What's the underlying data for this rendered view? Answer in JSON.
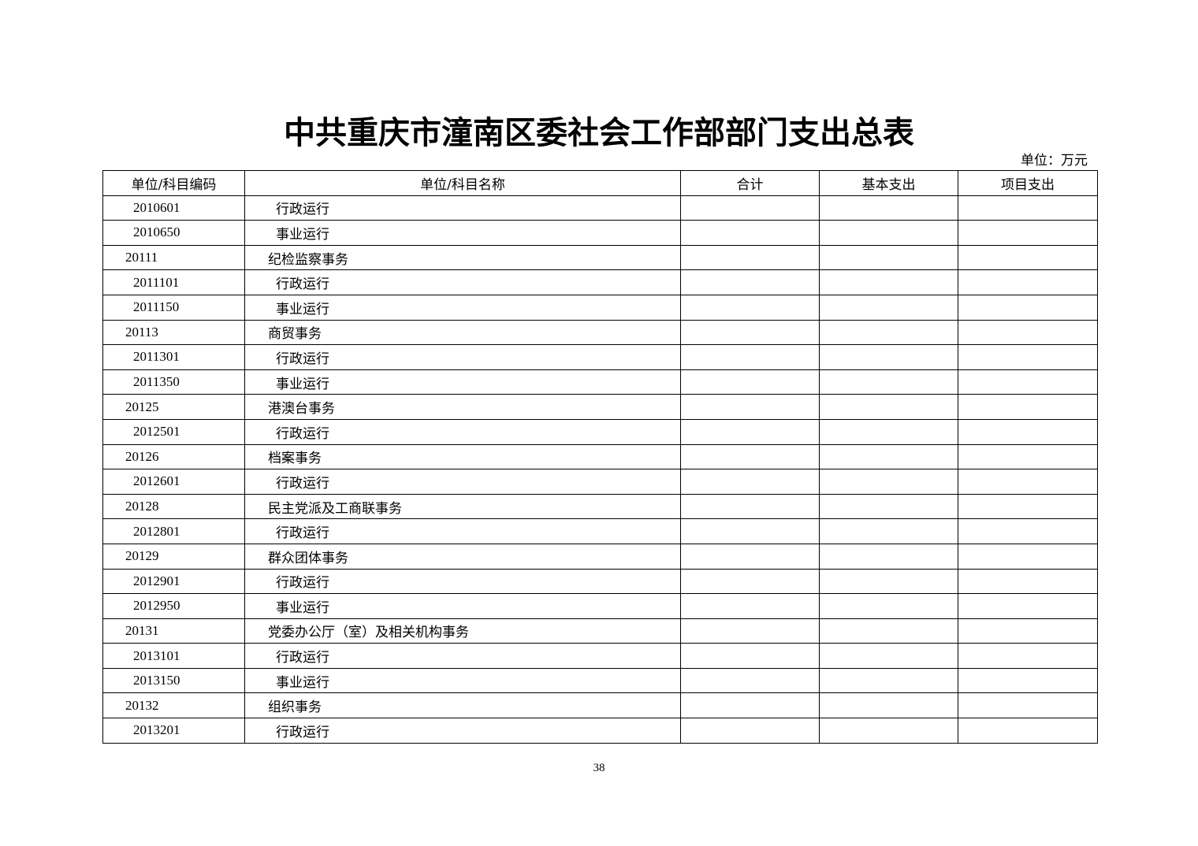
{
  "title": "中共重庆市潼南区委社会工作部部门支出总表",
  "unit": "单位：万元",
  "table": {
    "headers": [
      "单位/科目编码",
      "单位/科目名称",
      "合计",
      "基本支出",
      "项目支出"
    ],
    "rows": [
      {
        "code": "2010601",
        "name": "行政运行",
        "level": 2,
        "total": "",
        "basic": "",
        "project": ""
      },
      {
        "code": "2010650",
        "name": "事业运行",
        "level": 2,
        "total": "",
        "basic": "",
        "project": ""
      },
      {
        "code": "20111",
        "name": "纪检监察事务",
        "level": 1,
        "total": "",
        "basic": "",
        "project": ""
      },
      {
        "code": "2011101",
        "name": "行政运行",
        "level": 2,
        "total": "",
        "basic": "",
        "project": ""
      },
      {
        "code": "2011150",
        "name": "事业运行",
        "level": 2,
        "total": "",
        "basic": "",
        "project": ""
      },
      {
        "code": "20113",
        "name": "商贸事务",
        "level": 1,
        "total": "",
        "basic": "",
        "project": ""
      },
      {
        "code": "2011301",
        "name": "行政运行",
        "level": 2,
        "total": "",
        "basic": "",
        "project": ""
      },
      {
        "code": "2011350",
        "name": "事业运行",
        "level": 2,
        "total": "",
        "basic": "",
        "project": ""
      },
      {
        "code": "20125",
        "name": "港澳台事务",
        "level": 1,
        "total": "",
        "basic": "",
        "project": ""
      },
      {
        "code": "2012501",
        "name": "行政运行",
        "level": 2,
        "total": "",
        "basic": "",
        "project": ""
      },
      {
        "code": "20126",
        "name": "档案事务",
        "level": 1,
        "total": "",
        "basic": "",
        "project": ""
      },
      {
        "code": "2012601",
        "name": "行政运行",
        "level": 2,
        "total": "",
        "basic": "",
        "project": ""
      },
      {
        "code": "20128",
        "name": "民主党派及工商联事务",
        "level": 1,
        "total": "",
        "basic": "",
        "project": ""
      },
      {
        "code": "2012801",
        "name": "行政运行",
        "level": 2,
        "total": "",
        "basic": "",
        "project": ""
      },
      {
        "code": "20129",
        "name": "群众团体事务",
        "level": 1,
        "total": "",
        "basic": "",
        "project": ""
      },
      {
        "code": "2012901",
        "name": "行政运行",
        "level": 2,
        "total": "",
        "basic": "",
        "project": ""
      },
      {
        "code": "2012950",
        "name": "事业运行",
        "level": 2,
        "total": "",
        "basic": "",
        "project": ""
      },
      {
        "code": "20131",
        "name": "党委办公厅（室）及相关机构事务",
        "level": 1,
        "total": "",
        "basic": "",
        "project": ""
      },
      {
        "code": "2013101",
        "name": "行政运行",
        "level": 2,
        "total": "",
        "basic": "",
        "project": ""
      },
      {
        "code": "2013150",
        "name": "事业运行",
        "level": 2,
        "total": "",
        "basic": "",
        "project": ""
      },
      {
        "code": "20132",
        "name": "组织事务",
        "level": 1,
        "total": "",
        "basic": "",
        "project": ""
      },
      {
        "code": "2013201",
        "name": "行政运行",
        "level": 2,
        "total": "",
        "basic": "",
        "project": ""
      }
    ]
  },
  "page_number": "38"
}
